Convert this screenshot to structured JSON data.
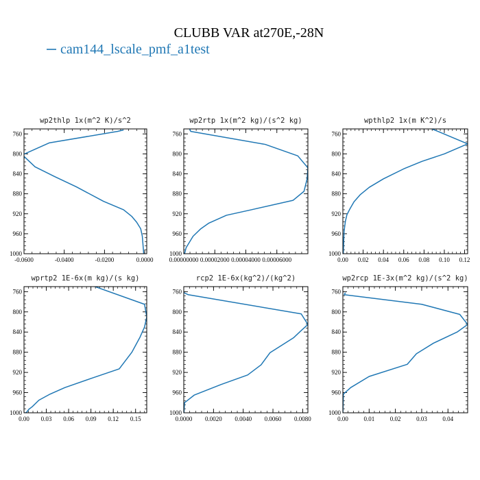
{
  "figure": {
    "title": "CLUBB VAR at270E,-28N",
    "legend_label": "cam144_lscale_pmf_a1test",
    "line_color": "#1f77b4"
  },
  "chart_data": [
    {
      "type": "line",
      "title": "wp2thlp  1x(m^2 K)/s^2",
      "xlim": [
        -0.06,
        0.001
      ],
      "ylim": [
        1000,
        750
      ],
      "xticks": [
        -0.06,
        -0.04,
        -0.02,
        0.0
      ],
      "xtick_labels": [
        "-0.0600",
        "-0.0400",
        "-0.0200",
        "0.0000"
      ],
      "yticks": [
        760,
        800,
        840,
        880,
        920,
        960,
        1000
      ],
      "series": [
        {
          "x": [
            -0.0105,
            -0.0135,
            -0.0475,
            -0.0608,
            -0.0545,
            -0.045,
            -0.034,
            -0.0205,
            -0.0105,
            -0.0065,
            -0.004,
            -0.002,
            -0.0012,
            -0.0005
          ],
          "y": [
            752,
            755,
            778,
            802,
            826,
            845,
            866,
            895,
            912,
            925,
            937,
            950,
            965,
            1000
          ]
        }
      ]
    },
    {
      "type": "line",
      "title": "wp2rtp  1x(m^2 kg)/(s^2 kg)",
      "xlim": [
        0.0,
        8e-05
      ],
      "ylim": [
        1000,
        750
      ],
      "xticks": [
        0.0,
        2e-05,
        4e-05,
        6e-05
      ],
      "xtick_labels": [
        "0.00000000",
        "0.00002000",
        "0.00004000",
        "0.00006000"
      ],
      "yticks": [
        760,
        800,
        840,
        880,
        920,
        960,
        1000
      ],
      "series": [
        {
          "x": [
            3.5e-06,
            4.5e-06,
            5.25e-05,
            7.35e-05,
            8e-05,
            7.95e-05,
            7.75e-05,
            7.05e-05,
            4.35e-05,
            2.75e-05,
            1.6e-05,
            1.1e-05,
            6e-06,
            1.5e-06,
            5e-07
          ],
          "y": [
            748,
            755,
            781,
            804,
            828,
            850,
            875,
            893,
            912,
            923,
            939,
            950,
            965,
            988,
            1000
          ]
        }
      ]
    },
    {
      "type": "line",
      "title": "wpthlp2  1x(m K^2)/s",
      "xlim": [
        0.0,
        0.123
      ],
      "ylim": [
        1000,
        750
      ],
      "xticks": [
        0.0,
        0.02,
        0.04,
        0.06,
        0.08,
        0.1,
        0.12
      ],
      "xtick_labels": [
        "0.00",
        "0.02",
        "0.04",
        "0.06",
        "0.08",
        "0.10",
        "0.12"
      ],
      "yticks": [
        760,
        800,
        840,
        880,
        920,
        960,
        1000
      ],
      "series": [
        {
          "x": [
            0.0855,
            0.123,
            0.1,
            0.078,
            0.06,
            0.04,
            0.026,
            0.017,
            0.011,
            0.007,
            0.004,
            0.0025,
            0.0012,
            0.0004
          ],
          "y": [
            748,
            780,
            800,
            815,
            830,
            850,
            867,
            882,
            896,
            910,
            922,
            935,
            955,
            1000
          ]
        }
      ]
    },
    {
      "type": "line",
      "title": "wprtp2  1E-6x(m kg)/(s kg)",
      "xlim": [
        0.0,
        0.165
      ],
      "ylim": [
        1000,
        750
      ],
      "xticks": [
        0.0,
        0.03,
        0.06,
        0.09,
        0.12,
        0.15
      ],
      "xtick_labels": [
        "0.00",
        "0.03",
        "0.06",
        "0.09",
        "0.12",
        "0.15"
      ],
      "yticks": [
        760,
        800,
        840,
        880,
        920,
        960,
        1000
      ],
      "series": [
        {
          "x": [
            0.086,
            0.162,
            0.165,
            0.162,
            0.156,
            0.145,
            0.128,
            0.09,
            0.055,
            0.035,
            0.02,
            0.011,
            0.0065,
            0.004,
            0.0025,
            0.001
          ],
          "y": [
            745,
            785,
            810,
            830,
            850,
            880,
            913,
            932,
            950,
            963,
            975,
            988,
            993,
            998,
            1000,
            1000
          ]
        }
      ]
    },
    {
      "type": "line",
      "title": "rcp2  1E-6x(kg^2)/(kg^2)",
      "xlim": [
        0.0,
        0.00835
      ],
      "ylim": [
        1000,
        750
      ],
      "xticks": [
        0.0,
        0.002,
        0.004,
        0.006,
        0.008
      ],
      "xtick_labels": [
        "0.0000",
        "0.0020",
        "0.0040",
        "0.0060",
        "0.0080"
      ],
      "yticks": [
        760,
        800,
        840,
        880,
        920,
        960,
        1000
      ],
      "series": [
        {
          "x": [
            1e-05,
            0.0003,
            0.0079,
            0.00835,
            0.0079,
            0.0074,
            0.0058,
            0.0052,
            0.0043,
            0.0025,
            0.0007,
            5e-05,
            1e-05
          ],
          "y": [
            762,
            766,
            804,
            825,
            837,
            851,
            881,
            905,
            925,
            944,
            965,
            980,
            1000
          ]
        }
      ]
    },
    {
      "type": "line",
      "title": "wp2rcp  1E-3x(m^2 kg)/(s^2 kg)",
      "xlim": [
        0.0,
        0.0475
      ],
      "ylim": [
        1000,
        750
      ],
      "xticks": [
        0.0,
        0.01,
        0.02,
        0.03,
        0.04
      ],
      "xtick_labels": [
        "0.00",
        "0.01",
        "0.02",
        "0.03",
        "0.04"
      ],
      "yticks": [
        760,
        800,
        840,
        880,
        920,
        960,
        1000
      ],
      "series": [
        {
          "x": [
            0.001,
            0.0005,
            0.03,
            0.0445,
            0.0475,
            0.0435,
            0.0345,
            0.028,
            0.0245,
            0.01,
            0.003,
            0.0002,
            1e-05
          ],
          "y": [
            762,
            766,
            785,
            805,
            825,
            840,
            862,
            883,
            904,
            928,
            950,
            963,
            1000
          ]
        }
      ]
    }
  ]
}
